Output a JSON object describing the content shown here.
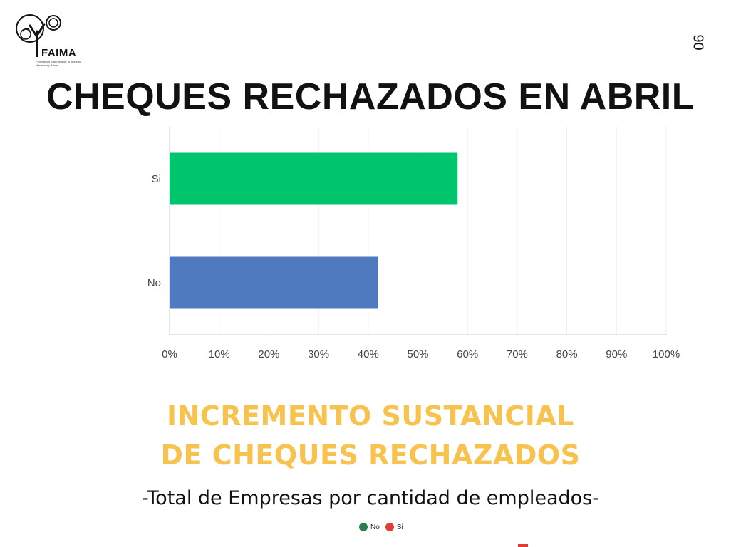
{
  "header": {
    "logo_text": "FAIMA",
    "logo_subtext": "Federación Argentina de la Industria Maderera y Afines",
    "page_number": "90",
    "title": "CHEQUES RECHAZADOS EN ABRIL"
  },
  "chart_data": {
    "type": "bar",
    "orientation": "horizontal",
    "categories": [
      "Si",
      "No"
    ],
    "values": [
      58,
      42
    ],
    "colors": [
      "#00c56d",
      "#4f7abf"
    ],
    "xlim": [
      0,
      100
    ],
    "xticks": [
      "0%",
      "10%",
      "20%",
      "30%",
      "40%",
      "50%",
      "60%",
      "70%",
      "80%",
      "90%",
      "100%"
    ],
    "grid": true
  },
  "highlight": {
    "line1": "INCREMENTO SUSTANCIAL",
    "line2": "DE CHEQUES RECHAZADOS"
  },
  "subtitle": "-Total de Empresas por cantidad de empleados-",
  "legend": {
    "items": [
      {
        "label": "No",
        "color": "#2e7d4f"
      },
      {
        "label": "Si",
        "color": "#e53935"
      }
    ]
  }
}
